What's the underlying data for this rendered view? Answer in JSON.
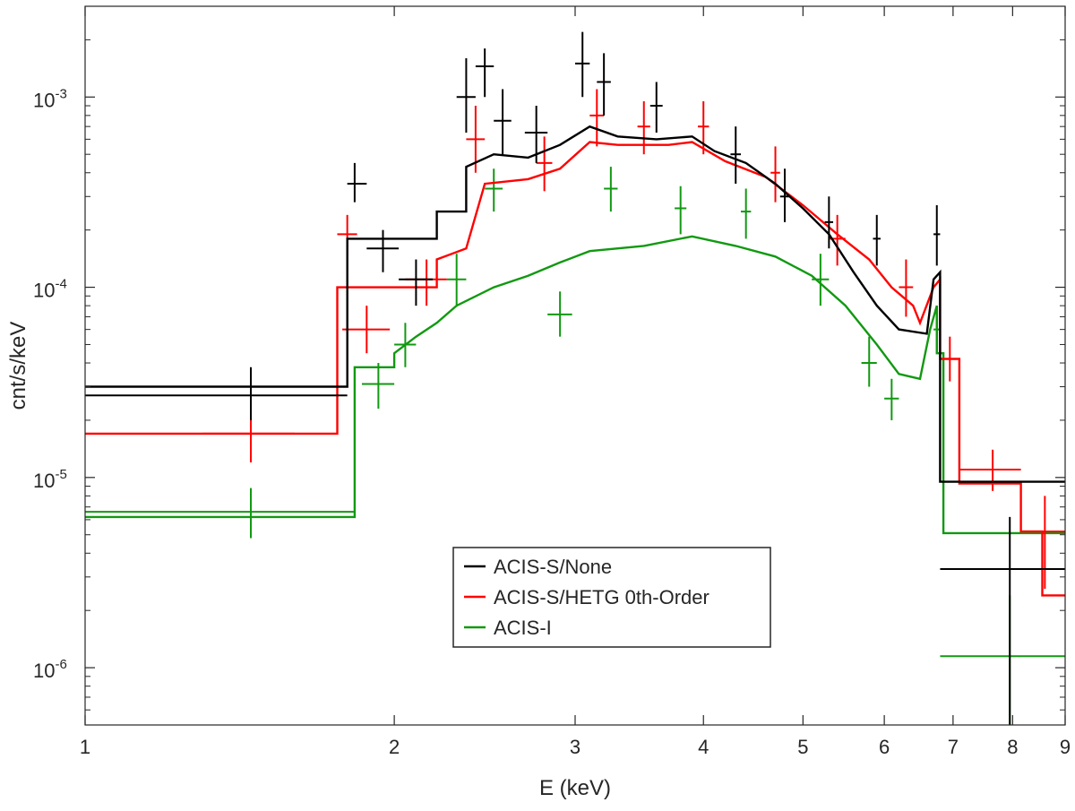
{
  "chart_data": {
    "type": "line",
    "title": "",
    "xlabel": "E (keV)",
    "ylabel": "cnt/s/keV",
    "xscale": "log",
    "yscale": "log",
    "xlim": [
      1,
      9
    ],
    "ylim": [
      5e-07,
      0.003
    ],
    "grid": false,
    "legend_position": "bottom-center",
    "x_ticks": [
      {
        "value": 1,
        "label": "1"
      },
      {
        "value": 2,
        "label": "2"
      },
      {
        "value": 3,
        "label": "3"
      },
      {
        "value": 4,
        "label": "4"
      },
      {
        "value": 5,
        "label": "5"
      },
      {
        "value": 6,
        "label": "6"
      },
      {
        "value": 7,
        "label": "7"
      },
      {
        "value": 8,
        "label": "8"
      },
      {
        "value": 9,
        "label": "9"
      }
    ],
    "y_ticks": [
      {
        "value": 1e-06,
        "base": "10",
        "exp": "-6"
      },
      {
        "value": 1e-05,
        "base": "10",
        "exp": "-5"
      },
      {
        "value": 0.0001,
        "base": "10",
        "exp": "-4"
      },
      {
        "value": 0.001,
        "base": "10",
        "exp": "-3"
      }
    ],
    "series": [
      {
        "name": "ACIS-S/None",
        "color": "#000000",
        "model": [
          [
            1.0,
            3e-05
          ],
          [
            1.8,
            3e-05
          ],
          [
            1.8,
            0.00018
          ],
          [
            2.2,
            0.00018
          ],
          [
            2.2,
            0.00025
          ],
          [
            2.35,
            0.00025
          ],
          [
            2.35,
            0.00043
          ],
          [
            2.5,
            0.0005
          ],
          [
            2.7,
            0.00048
          ],
          [
            2.9,
            0.00056
          ],
          [
            3.1,
            0.0007
          ],
          [
            3.3,
            0.00062
          ],
          [
            3.6,
            0.0006
          ],
          [
            3.9,
            0.00062
          ],
          [
            4.1,
            0.00052
          ],
          [
            4.4,
            0.00045
          ],
          [
            4.7,
            0.00035
          ],
          [
            5.0,
            0.00026
          ],
          [
            5.3,
            0.00019
          ],
          [
            5.6,
            0.00012
          ],
          [
            5.9,
            8e-05
          ],
          [
            6.2,
            6e-05
          ],
          [
            6.6,
            5.7e-05
          ],
          [
            6.7,
            0.00011
          ],
          [
            6.8,
            0.00012
          ],
          [
            6.8,
            9.5e-06
          ],
          [
            9.0,
            9.5e-06
          ]
        ],
        "points": [
          {
            "x": 1.45,
            "xlo": 1.0,
            "xhi": 1.8,
            "y": 2.7e-05,
            "ylo": 2e-05,
            "yhi": 3.8e-05
          },
          {
            "x": 1.83,
            "xlo": 1.8,
            "xhi": 1.88,
            "y": 0.00035,
            "ylo": 0.00028,
            "yhi": 0.00045
          },
          {
            "x": 1.95,
            "xlo": 1.88,
            "xhi": 2.02,
            "y": 0.00016,
            "ylo": 0.00012,
            "yhi": 0.0002
          },
          {
            "x": 2.1,
            "xlo": 2.02,
            "xhi": 2.18,
            "y": 0.00011,
            "ylo": 8e-05,
            "yhi": 0.00014
          },
          {
            "x": 2.35,
            "xlo": 2.3,
            "xhi": 2.4,
            "y": 0.001,
            "ylo": 0.00065,
            "yhi": 0.0016
          },
          {
            "x": 2.45,
            "xlo": 2.4,
            "xhi": 2.5,
            "y": 0.00145,
            "ylo": 0.001,
            "yhi": 0.0018
          },
          {
            "x": 2.55,
            "xlo": 2.5,
            "xhi": 2.6,
            "y": 0.00075,
            "ylo": 0.0005,
            "yhi": 0.0011
          },
          {
            "x": 2.75,
            "xlo": 2.68,
            "xhi": 2.82,
            "y": 0.00065,
            "ylo": 0.00045,
            "yhi": 0.0009
          },
          {
            "x": 3.05,
            "xlo": 3.0,
            "xhi": 3.1,
            "y": 0.0015,
            "ylo": 0.001,
            "yhi": 0.0022
          },
          {
            "x": 3.2,
            "xlo": 3.15,
            "xhi": 3.25,
            "y": 0.0012,
            "ylo": 0.0008,
            "yhi": 0.0017
          },
          {
            "x": 3.6,
            "xlo": 3.55,
            "xhi": 3.65,
            "y": 0.0009,
            "ylo": 0.00065,
            "yhi": 0.0012
          },
          {
            "x": 4.3,
            "xlo": 4.25,
            "xhi": 4.35,
            "y": 0.0005,
            "ylo": 0.00035,
            "yhi": 0.0007
          },
          {
            "x": 4.8,
            "xlo": 4.75,
            "xhi": 4.85,
            "y": 0.0003,
            "ylo": 0.00022,
            "yhi": 0.00042
          },
          {
            "x": 5.3,
            "xlo": 5.25,
            "xhi": 5.35,
            "y": 0.00022,
            "ylo": 0.00016,
            "yhi": 0.0003
          },
          {
            "x": 5.9,
            "xlo": 5.85,
            "xhi": 5.95,
            "y": 0.00018,
            "ylo": 0.00013,
            "yhi": 0.00024
          },
          {
            "x": 6.75,
            "xlo": 6.7,
            "xhi": 6.8,
            "y": 0.00019,
            "ylo": 0.00013,
            "yhi": 0.00027
          },
          {
            "x": 7.95,
            "xlo": 6.8,
            "xhi": 9.0,
            "y": 3.3e-06,
            "ylo": 5e-07,
            "yhi": 6.2e-06
          }
        ]
      },
      {
        "name": "ACIS-S/HETG 0th-Order",
        "color": "#ff0000",
        "model": [
          [
            1.0,
            1.7e-05
          ],
          [
            1.76,
            1.7e-05
          ],
          [
            1.76,
            0.0001
          ],
          [
            2.2,
            0.0001
          ],
          [
            2.2,
            0.00014
          ],
          [
            2.35,
            0.00016
          ],
          [
            2.45,
            0.00035
          ],
          [
            2.7,
            0.00037
          ],
          [
            2.9,
            0.00042
          ],
          [
            3.1,
            0.00058
          ],
          [
            3.3,
            0.00056
          ],
          [
            3.7,
            0.00056
          ],
          [
            3.9,
            0.00058
          ],
          [
            4.2,
            0.00046
          ],
          [
            4.6,
            0.00038
          ],
          [
            5.0,
            0.00027
          ],
          [
            5.4,
            0.00019
          ],
          [
            5.8,
            0.00014
          ],
          [
            6.1,
            0.0001
          ],
          [
            6.4,
            8e-05
          ],
          [
            6.5,
            6.5e-05
          ],
          [
            6.7,
            0.0001
          ],
          [
            6.8,
            0.00011
          ],
          [
            6.8,
            4.2e-05
          ],
          [
            7.1,
            4.2e-05
          ],
          [
            7.1,
            9.3e-06
          ],
          [
            8.15,
            9.3e-06
          ],
          [
            8.15,
            5.2e-06
          ],
          [
            8.55,
            5.2e-06
          ],
          [
            8.55,
            2.4e-06
          ],
          [
            9.0,
            2.4e-06
          ]
        ],
        "points": [
          {
            "x": 1.45,
            "xlo": 1.3,
            "xhi": 1.6,
            "y": 1.7e-05,
            "ylo": 1.2e-05,
            "yhi": 2.2e-05
          },
          {
            "x": 1.8,
            "xlo": 1.76,
            "xhi": 1.84,
            "y": 0.00019,
            "ylo": 0.00015,
            "yhi": 0.00024
          },
          {
            "x": 1.88,
            "xlo": 1.78,
            "xhi": 1.98,
            "y": 6e-05,
            "ylo": 4.5e-05,
            "yhi": 8e-05
          },
          {
            "x": 2.15,
            "xlo": 2.05,
            "xhi": 2.25,
            "y": 0.00011,
            "ylo": 8e-05,
            "yhi": 0.00014
          },
          {
            "x": 2.4,
            "xlo": 2.35,
            "xhi": 2.45,
            "y": 0.0006,
            "ylo": 0.0004,
            "yhi": 0.0009
          },
          {
            "x": 2.8,
            "xlo": 2.75,
            "xhi": 2.85,
            "y": 0.00045,
            "ylo": 0.00032,
            "yhi": 0.00062
          },
          {
            "x": 3.15,
            "xlo": 3.1,
            "xhi": 3.2,
            "y": 0.0008,
            "ylo": 0.00055,
            "yhi": 0.0011
          },
          {
            "x": 3.5,
            "xlo": 3.45,
            "xhi": 3.55,
            "y": 0.0007,
            "ylo": 0.0005,
            "yhi": 0.00095
          },
          {
            "x": 4.0,
            "xlo": 3.95,
            "xhi": 4.05,
            "y": 0.0007,
            "ylo": 0.0005,
            "yhi": 0.00095
          },
          {
            "x": 4.7,
            "xlo": 4.65,
            "xhi": 4.75,
            "y": 0.0004,
            "ylo": 0.00028,
            "yhi": 0.00055
          },
          {
            "x": 5.4,
            "xlo": 5.3,
            "xhi": 5.5,
            "y": 0.00018,
            "ylo": 0.00013,
            "yhi": 0.00024
          },
          {
            "x": 6.3,
            "xlo": 6.2,
            "xhi": 6.4,
            "y": 0.0001,
            "ylo": 7e-05,
            "yhi": 0.00014
          },
          {
            "x": 6.95,
            "xlo": 6.85,
            "xhi": 7.05,
            "y": 4.2e-05,
            "ylo": 3.2e-05,
            "yhi": 5.5e-05
          },
          {
            "x": 7.65,
            "xlo": 7.1,
            "xhi": 8.15,
            "y": 1.1e-05,
            "ylo": 8.5e-06,
            "yhi": 1.4e-05
          },
          {
            "x": 8.6,
            "xlo": 8.15,
            "xhi": 9.0,
            "y": 5.2e-06,
            "ylo": 2.6e-06,
            "yhi": 8e-06
          }
        ]
      },
      {
        "name": "ACIS-I",
        "color": "#119911",
        "model": [
          [
            1.0,
            6.2e-06
          ],
          [
            1.83,
            6.2e-06
          ],
          [
            1.83,
            3.8e-05
          ],
          [
            2.0,
            3.8e-05
          ],
          [
            2.0,
            4.5e-05
          ],
          [
            2.1,
            5.5e-05
          ],
          [
            2.2,
            6.5e-05
          ],
          [
            2.3,
            8e-05
          ],
          [
            2.5,
            0.0001
          ],
          [
            2.7,
            0.000115
          ],
          [
            2.9,
            0.000135
          ],
          [
            3.1,
            0.000155
          ],
          [
            3.5,
            0.000165
          ],
          [
            3.9,
            0.000185
          ],
          [
            4.3,
            0.000165
          ],
          [
            4.7,
            0.000145
          ],
          [
            5.1,
            0.000115
          ],
          [
            5.5,
            8e-05
          ],
          [
            5.9,
            5e-05
          ],
          [
            6.2,
            3.5e-05
          ],
          [
            6.5,
            3.3e-05
          ],
          [
            6.65,
            6e-05
          ],
          [
            6.75,
            8e-05
          ],
          [
            6.75,
            4.5e-05
          ],
          [
            6.85,
            4.5e-05
          ],
          [
            6.85,
            5.1e-06
          ],
          [
            9.0,
            5.1e-06
          ]
        ],
        "points": [
          {
            "x": 1.45,
            "xlo": 1.0,
            "xhi": 1.83,
            "y": 6.6e-06,
            "ylo": 4.8e-06,
            "yhi": 8.8e-06
          },
          {
            "x": 1.93,
            "xlo": 1.86,
            "xhi": 2.0,
            "y": 3.1e-05,
            "ylo": 2.3e-05,
            "yhi": 4e-05
          },
          {
            "x": 2.05,
            "xlo": 2.0,
            "xhi": 2.1,
            "y": 5e-05,
            "ylo": 3.8e-05,
            "yhi": 6.5e-05
          },
          {
            "x": 2.3,
            "xlo": 2.25,
            "xhi": 2.35,
            "y": 0.00011,
            "ylo": 8e-05,
            "yhi": 0.00015
          },
          {
            "x": 2.5,
            "xlo": 2.45,
            "xhi": 2.55,
            "y": 0.00033,
            "ylo": 0.00025,
            "yhi": 0.00042
          },
          {
            "x": 2.9,
            "xlo": 2.82,
            "xhi": 2.98,
            "y": 7.2e-05,
            "ylo": 5.5e-05,
            "yhi": 9.5e-05
          },
          {
            "x": 3.25,
            "xlo": 3.2,
            "xhi": 3.3,
            "y": 0.00033,
            "ylo": 0.00025,
            "yhi": 0.00043
          },
          {
            "x": 3.8,
            "xlo": 3.75,
            "xhi": 3.85,
            "y": 0.00026,
            "ylo": 0.00019,
            "yhi": 0.00034
          },
          {
            "x": 4.4,
            "xlo": 4.35,
            "xhi": 4.45,
            "y": 0.00025,
            "ylo": 0.00018,
            "yhi": 0.00033
          },
          {
            "x": 5.2,
            "xlo": 5.1,
            "xhi": 5.3,
            "y": 0.00011,
            "ylo": 8e-05,
            "yhi": 0.00015
          },
          {
            "x": 5.8,
            "xlo": 5.7,
            "xhi": 5.9,
            "y": 4e-05,
            "ylo": 3e-05,
            "yhi": 5.5e-05
          },
          {
            "x": 6.1,
            "xlo": 6.0,
            "xhi": 6.2,
            "y": 2.6e-05,
            "ylo": 2e-05,
            "yhi": 3.3e-05
          },
          {
            "x": 6.75,
            "xlo": 6.7,
            "xhi": 6.8,
            "y": 6e-05,
            "ylo": 4.5e-05,
            "yhi": 8e-05
          },
          {
            "x": 7.95,
            "xlo": 6.8,
            "xhi": 9.0,
            "y": 1.15e-06,
            "ylo": 5e-07,
            "yhi": 2.4e-06
          }
        ]
      }
    ]
  }
}
